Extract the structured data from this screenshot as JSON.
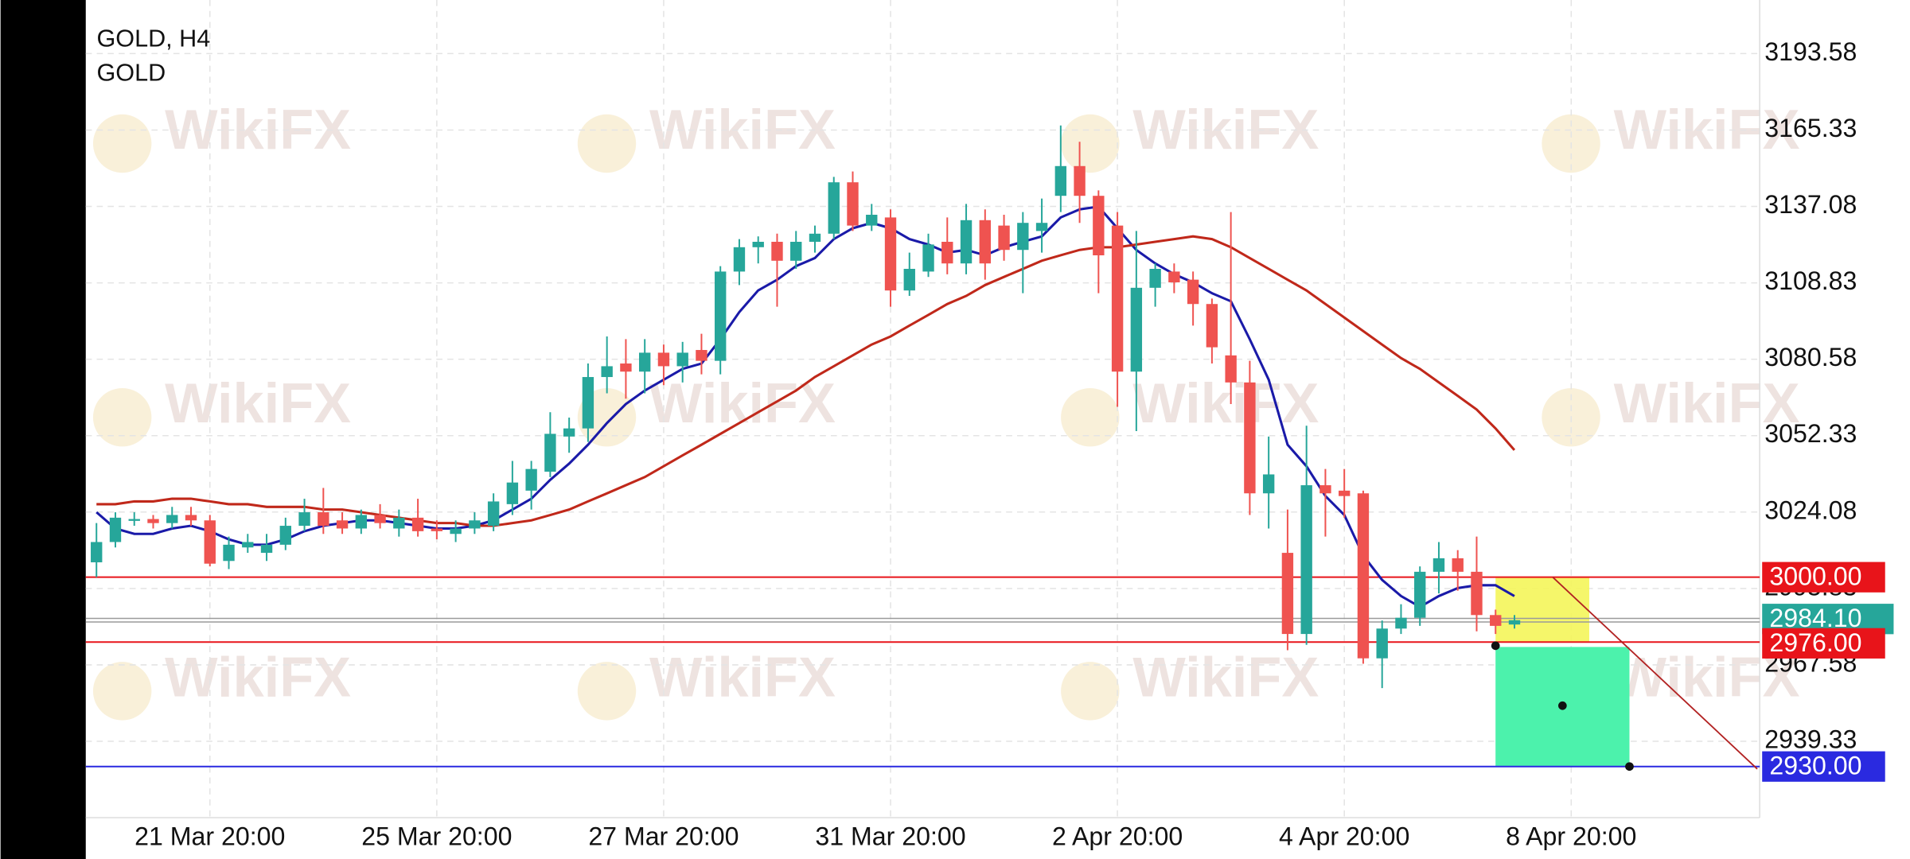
{
  "chart_data": {
    "type": "candlestick",
    "title": "GOLD, H4",
    "subtitle": "GOLD",
    "watermark": "WikiFX",
    "up_color": "#26a69a",
    "down_color": "#ef5350",
    "grid": true,
    "ylim": [
      2911.1,
      3213.4
    ],
    "yticks": [
      3193.58,
      3165.33,
      3137.08,
      3108.83,
      3080.58,
      3052.33,
      3024.08,
      2995.83,
      2967.58,
      2939.33
    ],
    "categories": [
      null,
      null,
      null,
      null,
      null,
      null,
      "21 Mar 20:00",
      null,
      null,
      null,
      null,
      null,
      null,
      null,
      null,
      null,
      null,
      null,
      "25 Mar 20:00",
      null,
      null,
      null,
      null,
      null,
      null,
      null,
      null,
      null,
      null,
      null,
      "27 Mar 20:00",
      null,
      null,
      null,
      null,
      null,
      null,
      null,
      null,
      null,
      null,
      null,
      "31 Mar 20:00",
      null,
      null,
      null,
      null,
      null,
      null,
      null,
      null,
      null,
      null,
      null,
      "2 Apr 20:00",
      null,
      null,
      null,
      null,
      null,
      null,
      null,
      null,
      null,
      null,
      null,
      "4 Apr 20:00",
      null,
      null,
      null,
      null,
      null,
      null,
      null,
      null,
      null,
      null,
      null,
      "8 Apr 20:00",
      null,
      null,
      null,
      null,
      null,
      null,
      null,
      null,
      null
    ],
    "open": [
      3005.5,
      3013,
      3021,
      3021.5,
      3020,
      3023,
      3021,
      3006,
      3011,
      3009,
      3012,
      3019,
      3024,
      3021,
      3018,
      3023,
      3018,
      3022,
      3018,
      3016,
      3018,
      3019,
      3027,
      3032,
      3039,
      3052,
      3055,
      3074,
      3079,
      3076,
      3083,
      3078,
      3084,
      3080,
      3113,
      3122,
      3124,
      3117,
      3124,
      3127,
      3146,
      3130,
      3133,
      3106,
      3113,
      3124,
      3116,
      3132,
      3130,
      3121,
      3128,
      3141,
      3152,
      3141,
      3130,
      3076,
      3107,
      3113,
      3110,
      3101,
      3082,
      3072,
      3031,
      3009,
      2979,
      3034,
      3032,
      3031,
      2970,
      2981,
      2985,
      3002,
      3007,
      3002,
      2986,
      2982.5,
      null,
      null,
      null,
      null,
      null,
      null,
      null,
      null,
      null,
      null,
      null,
      null
    ],
    "high": [
      3020,
      3024,
      3024,
      3023,
      3026,
      3026,
      3023,
      3015,
      3016,
      3016,
      3022,
      3029,
      3033,
      3024,
      3025,
      3027,
      3025,
      3029,
      3021,
      3021,
      3024,
      3031,
      3043,
      3043,
      3061,
      3059,
      3079,
      3089,
      3088,
      3088,
      3086,
      3087,
      3090,
      3115,
      3125,
      3126,
      3127,
      3128,
      3130,
      3148,
      3150,
      3138,
      3136,
      3120,
      3127,
      3133,
      3138,
      3136,
      3134,
      3135,
      3140,
      3167,
      3161,
      3143,
      3135,
      3128,
      3116,
      3116,
      3113,
      3103,
      3135,
      3080,
      3052,
      3025,
      3056,
      3040,
      3040,
      3032,
      2984,
      2990,
      3004,
      3013,
      3010,
      3015,
      2988,
      2986,
      null,
      null,
      null,
      null,
      null,
      null,
      null,
      null,
      null,
      null,
      null,
      null
    ],
    "low": [
      3000,
      3011,
      3019,
      3018,
      3018,
      3019,
      3004,
      3003,
      3009,
      3006,
      3010,
      3017,
      3016,
      3016,
      3016,
      3018,
      3015,
      3015,
      3014,
      3013,
      3016,
      3017,
      3023,
      3025,
      3037,
      3046,
      3050,
      3068,
      3066,
      3068,
      3071,
      3072,
      3075,
      3075,
      3108,
      3116,
      3100,
      3114,
      3120,
      3125,
      3128,
      3128,
      3100,
      3104,
      3111,
      3112,
      3112,
      3110,
      3117,
      3105,
      3120,
      3135,
      3131,
      3105,
      3063,
      3054,
      3100,
      3105,
      3093,
      3079,
      3064,
      3023,
      3018,
      2973,
      2975,
      3015,
      3022,
      2968,
      2959,
      2979,
      2982,
      2994,
      2995,
      2980,
      2979,
      2981,
      null,
      null,
      null,
      null,
      null,
      null,
      null,
      null,
      null,
      null,
      null,
      null
    ],
    "close": [
      3013,
      3022,
      3021.5,
      3020,
      3023,
      3021,
      3005,
      3012,
      3013,
      3012,
      3019,
      3024,
      3019,
      3018,
      3023,
      3020,
      3022,
      3017,
      3017,
      3018,
      3021,
      3028,
      3035,
      3040,
      3053,
      3055,
      3074,
      3078,
      3076,
      3083,
      3078,
      3083,
      3080,
      3113,
      3122,
      3124,
      3117,
      3124,
      3127,
      3146,
      3130,
      3134,
      3106,
      3114,
      3123,
      3116,
      3132,
      3116,
      3121,
      3131,
      3131,
      3152,
      3141,
      3119,
      3076,
      3107,
      3114,
      3109,
      3101,
      3085,
      3072,
      3031,
      3038,
      2979,
      3034,
      3031,
      3030,
      2970,
      2981,
      2985,
      3002,
      3007,
      3002,
      2986,
      2982,
      2984.1,
      null,
      null,
      null,
      null,
      null,
      null,
      null,
      null,
      null,
      null,
      null,
      null
    ],
    "moving_averages": [
      {
        "color": "#1a1aa8",
        "values": [
          3024,
          3018,
          3016,
          3016,
          3018,
          3019,
          3017,
          3014,
          3012,
          3012,
          3014,
          3017,
          3019,
          3020,
          3021,
          3021,
          3020,
          3019,
          3018,
          3018,
          3019,
          3021,
          3025,
          3029,
          3036,
          3042,
          3049,
          3057,
          3064,
          3069,
          3073,
          3077,
          3079,
          3088,
          3098,
          3106,
          3110,
          3115,
          3118,
          3125,
          3129,
          3131,
          3129,
          3125,
          3123,
          3120,
          3121,
          3119,
          3122,
          3124,
          3126,
          3133,
          3136,
          3137,
          3129,
          3121,
          3116,
          3112,
          3109,
          3105,
          3102,
          3088,
          3073,
          3049,
          3041,
          3030,
          3023,
          3008,
          2999,
          2993,
          2989,
          2993,
          2996,
          2997,
          2997,
          2993,
          null,
          null,
          null,
          null,
          null,
          null,
          null,
          null,
          null,
          null,
          null,
          null
        ]
      },
      {
        "color": "#c0281a",
        "values": [
          3027,
          3027,
          3028,
          3028,
          3029,
          3029,
          3028,
          3027,
          3027,
          3026,
          3026,
          3026,
          3025,
          3025,
          3024,
          3023,
          3022,
          3021,
          3020,
          3020,
          3019,
          3019,
          3020,
          3021,
          3023,
          3025,
          3028,
          3031,
          3034,
          3037,
          3041,
          3045,
          3049,
          3053,
          3057,
          3061,
          3065,
          3069,
          3074,
          3078,
          3082,
          3086,
          3089,
          3093,
          3097,
          3101,
          3104,
          3108,
          3111,
          3114,
          3117,
          3119,
          3121,
          3122,
          3122,
          3123,
          3124,
          3125,
          3126,
          3125,
          3122,
          3118,
          3114,
          3110,
          3106,
          3101,
          3096,
          3091,
          3086,
          3081,
          3077,
          3072,
          3067,
          3062,
          3055,
          3047,
          null,
          null,
          null,
          null,
          null,
          null,
          null,
          null,
          null,
          null,
          null,
          null
        ]
      }
    ],
    "levels": [
      {
        "value": 3000,
        "label": "3000.00",
        "color": "#e8141a"
      },
      {
        "value": 2984.1,
        "label": "2984.10",
        "color": "#26a69a"
      },
      {
        "value": 2976,
        "label": "2976.00",
        "color": "#e8141a"
      },
      {
        "value": 2930,
        "label": "2930.00",
        "color": "#2a2ae0"
      }
    ]
  }
}
